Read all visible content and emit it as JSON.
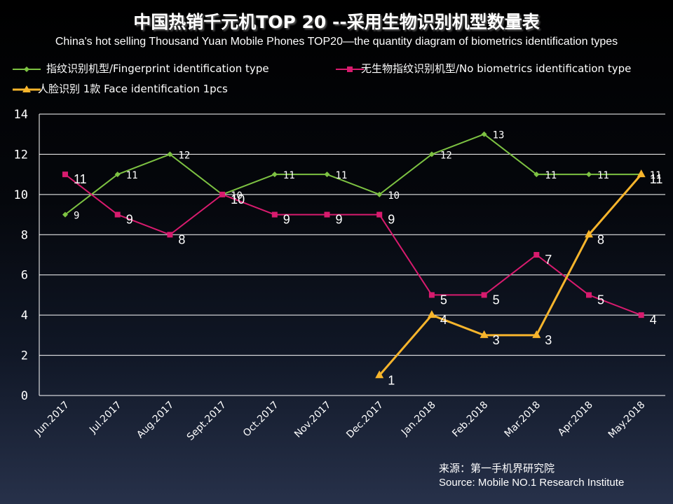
{
  "title": "中国热销千元机TOP 20 --采用生物识别机型数量表",
  "subtitle": "China's hot selling Thousand Yuan Mobile Phones TOP20—the quantity diagram of biometrics identification types",
  "source": {
    "line1": "来源：第一手机界研究院",
    "line2": "Source: Mobile NO.1 Research Institute"
  },
  "chart_data": {
    "type": "line",
    "categories": [
      "Jun.2017",
      "Jul.2017",
      "Aug.2017",
      "Sept.2017",
      "Oct.2017",
      "Nov.2017",
      "Dec.2017",
      "Jan.2018",
      "Feb.2018",
      "Mar.2018",
      "Apr.2018",
      "May.2018"
    ],
    "ylim": [
      0,
      14
    ],
    "yticks": [
      0,
      2,
      4,
      6,
      8,
      10,
      12,
      14
    ],
    "grid": true,
    "legend_position": "top",
    "series": [
      {
        "name": "指纹识别机型/Fingerprint identification type",
        "color": "#7dc242",
        "marker": "diamond",
        "values": [
          9,
          11,
          12,
          10,
          11,
          11,
          10,
          12,
          13,
          11,
          11,
          11
        ]
      },
      {
        "name": "无生物指纹识别机型/No biometrics identification type",
        "color": "#d81b6e",
        "marker": "square",
        "values": [
          11,
          9,
          8,
          10,
          9,
          9,
          9,
          5,
          5,
          7,
          5,
          4
        ]
      },
      {
        "name": "人脸识别 1款 Face identification 1pcs",
        "color": "#f7b52c",
        "marker": "triangle",
        "values": [
          null,
          null,
          null,
          null,
          null,
          null,
          1,
          4,
          3,
          3,
          8,
          11
        ]
      }
    ]
  }
}
